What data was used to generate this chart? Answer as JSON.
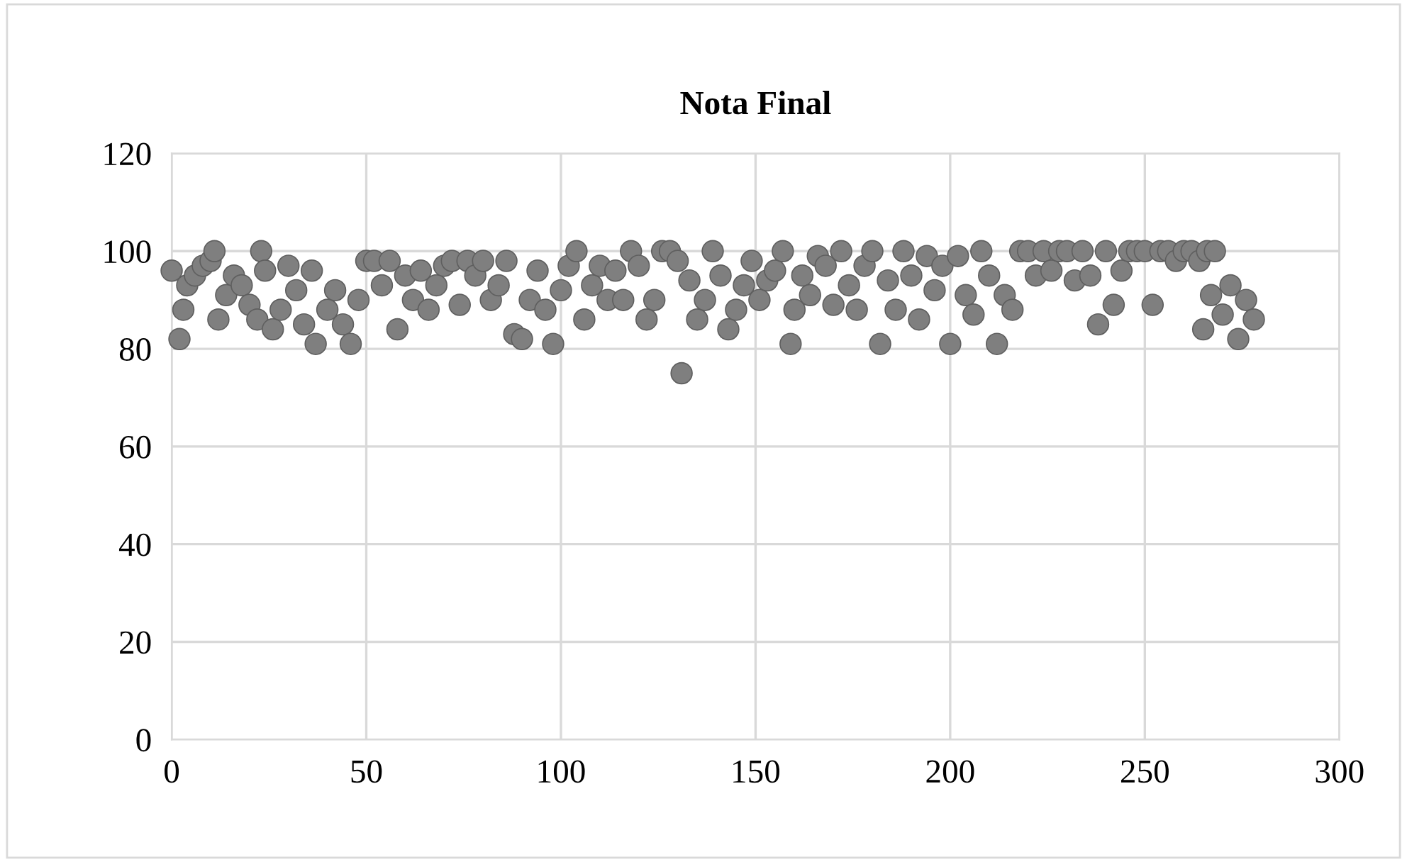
{
  "chart_data": {
    "type": "scatter",
    "title": "Nota Final",
    "marker": "circle",
    "grid": true,
    "xlim": [
      0,
      300
    ],
    "ylim": [
      0,
      120
    ],
    "xticks": [
      0,
      50,
      100,
      150,
      200,
      250,
      300
    ],
    "yticks": [
      0,
      20,
      40,
      60,
      80,
      100,
      120
    ],
    "series": [
      {
        "color": "#7f7f7f",
        "x": [
          0,
          2,
          3,
          4,
          6,
          8,
          10,
          11,
          12,
          14,
          16,
          18,
          20,
          22,
          23,
          24,
          26,
          28,
          30,
          32,
          34,
          36,
          37,
          40,
          42,
          44,
          46,
          48,
          50,
          52,
          54,
          56,
          58,
          60,
          62,
          64,
          66,
          68,
          70,
          72,
          74,
          76,
          78,
          80,
          82,
          84,
          86,
          88,
          90,
          92,
          94,
          96,
          98,
          100,
          102,
          104,
          106,
          108,
          110,
          112,
          114,
          116,
          118,
          120,
          122,
          124,
          126,
          128,
          130,
          131,
          133,
          135,
          137,
          139,
          141,
          143,
          145,
          147,
          149,
          151,
          153,
          155,
          157,
          159,
          160,
          162,
          164,
          166,
          168,
          170,
          172,
          174,
          176,
          178,
          180,
          182,
          184,
          186,
          188,
          190,
          192,
          194,
          196,
          198,
          200,
          202,
          204,
          206,
          208,
          210,
          212,
          214,
          216,
          218,
          220,
          222,
          224,
          226,
          228,
          230,
          232,
          234,
          236,
          238,
          240,
          242,
          244,
          246,
          248,
          250,
          252,
          254,
          256,
          258,
          260,
          262,
          264,
          265,
          266,
          267,
          268,
          270,
          272,
          274,
          276,
          278
        ],
        "values": [
          96,
          82,
          88,
          93,
          95,
          97,
          98,
          100,
          86,
          91,
          95,
          93,
          89,
          86,
          100,
          96,
          84,
          88,
          97,
          92,
          85,
          96,
          81,
          88,
          92,
          85,
          81,
          90,
          98,
          98,
          93,
          98,
          84,
          95,
          90,
          96,
          88,
          93,
          97,
          98,
          89,
          98,
          95,
          98,
          90,
          93,
          98,
          83,
          82,
          90,
          96,
          88,
          81,
          92,
          97,
          100,
          86,
          93,
          97,
          90,
          96,
          90,
          100,
          97,
          86,
          90,
          100,
          100,
          98,
          75,
          94,
          86,
          90,
          100,
          95,
          84,
          88,
          93,
          98,
          90,
          94,
          96,
          100,
          81,
          88,
          95,
          91,
          99,
          97,
          89,
          100,
          93,
          88,
          97,
          100,
          81,
          94,
          88,
          100,
          95,
          86,
          99,
          92,
          97,
          81,
          99,
          91,
          87,
          100,
          95,
          81,
          91,
          88,
          100,
          100,
          95,
          100,
          96,
          100,
          100,
          94,
          100,
          95,
          85,
          100,
          89,
          96,
          100,
          100,
          100,
          89,
          100,
          100,
          98,
          100,
          100,
          98,
          84,
          100,
          91,
          100,
          87,
          93,
          82,
          90,
          86
        ]
      }
    ]
  }
}
